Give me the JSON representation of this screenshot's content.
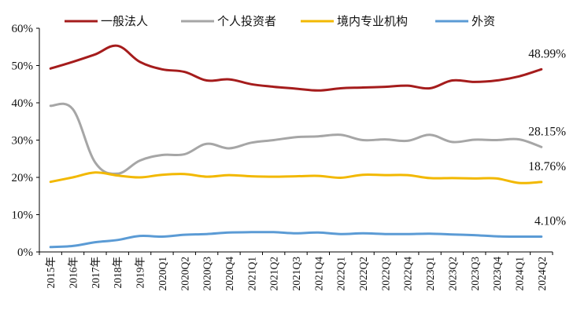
{
  "chart_data": {
    "type": "line",
    "title": "",
    "xlabel": "",
    "ylabel": "",
    "ylim": [
      0,
      60
    ],
    "yticks": [
      "0%",
      "10%",
      "20%",
      "30%",
      "40%",
      "50%",
      "60%"
    ],
    "grid": false,
    "legend_position": "top",
    "categories": [
      "2015年",
      "2016年",
      "2017年",
      "2018年",
      "2019年",
      "2020Q1",
      "2020Q2",
      "2020Q3",
      "2020Q4",
      "2021Q1",
      "2021Q2",
      "2021Q3",
      "2021Q4",
      "2022Q1",
      "2022Q2",
      "2022Q3",
      "2022Q4",
      "2023Q1",
      "2023Q2",
      "2023Q3",
      "2023Q4",
      "2024Q1",
      "2024Q2"
    ],
    "series": [
      {
        "name": "一般法人",
        "color": "#a51c1c",
        "values": [
          49.2,
          51.0,
          53.0,
          55.3,
          51.0,
          49.0,
          48.3,
          46.0,
          46.3,
          45.0,
          44.3,
          43.8,
          43.3,
          43.9,
          44.1,
          44.3,
          44.6,
          43.9,
          46.0,
          45.6,
          46.0,
          47.1,
          48.99
        ],
        "end_label": "48.99%"
      },
      {
        "name": "个人投资者",
        "color": "#a6a6a6",
        "values": [
          39.2,
          38.3,
          24.0,
          21.0,
          24.5,
          26.0,
          26.2,
          29.0,
          27.8,
          29.3,
          30.0,
          30.8,
          31.0,
          31.4,
          30.0,
          30.2,
          29.8,
          31.4,
          29.5,
          30.1,
          30.0,
          30.2,
          28.15
        ],
        "end_label": "28.15%"
      },
      {
        "name": "境内专业机构",
        "color": "#f2b800",
        "values": [
          18.8,
          20.0,
          21.3,
          20.5,
          20.0,
          20.7,
          20.9,
          20.2,
          20.6,
          20.3,
          20.2,
          20.3,
          20.4,
          19.9,
          20.7,
          20.6,
          20.6,
          19.8,
          19.8,
          19.7,
          19.7,
          18.5,
          18.76
        ],
        "end_label": "18.76%"
      },
      {
        "name": "外资",
        "color": "#5b9bd5",
        "values": [
          1.3,
          1.6,
          2.6,
          3.2,
          4.3,
          4.1,
          4.6,
          4.8,
          5.2,
          5.3,
          5.3,
          5.0,
          5.2,
          4.8,
          5.0,
          4.8,
          4.8,
          4.9,
          4.7,
          4.5,
          4.2,
          4.1,
          4.1
        ],
        "end_label": "4.10%"
      }
    ]
  }
}
